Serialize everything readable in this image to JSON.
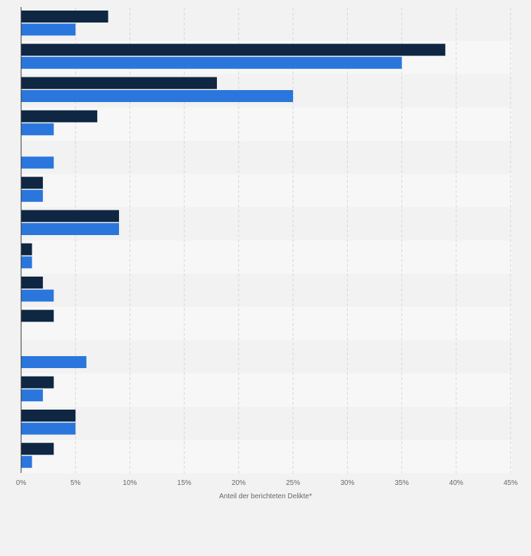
{
  "chart_data": {
    "type": "bar",
    "orientation": "horizontal",
    "categories": [
      "",
      "",
      "",
      "",
      "",
      "",
      "",
      "",
      "",
      "",
      "",
      "",
      "",
      ""
    ],
    "series": [
      {
        "color": "#0f2742",
        "values": [
          8,
          39,
          18,
          7,
          0,
          2,
          9,
          1,
          2,
          3,
          0,
          3,
          5,
          3
        ]
      },
      {
        "color": "#2a76dd",
        "values": [
          5,
          35,
          25,
          3,
          3,
          2,
          9,
          1,
          3,
          0,
          6,
          2,
          5,
          1
        ]
      }
    ],
    "xlim": [
      0,
      45
    ],
    "xticks": [
      "0%",
      "5%",
      "10%",
      "15%",
      "20%",
      "25%",
      "30%",
      "35%",
      "40%",
      "45%"
    ],
    "xlabel": "Anteil der berichteten Delikte*",
    "ylabel": "",
    "title": "",
    "grid": true,
    "grid_style": "dashed vertical",
    "legend": "none"
  }
}
